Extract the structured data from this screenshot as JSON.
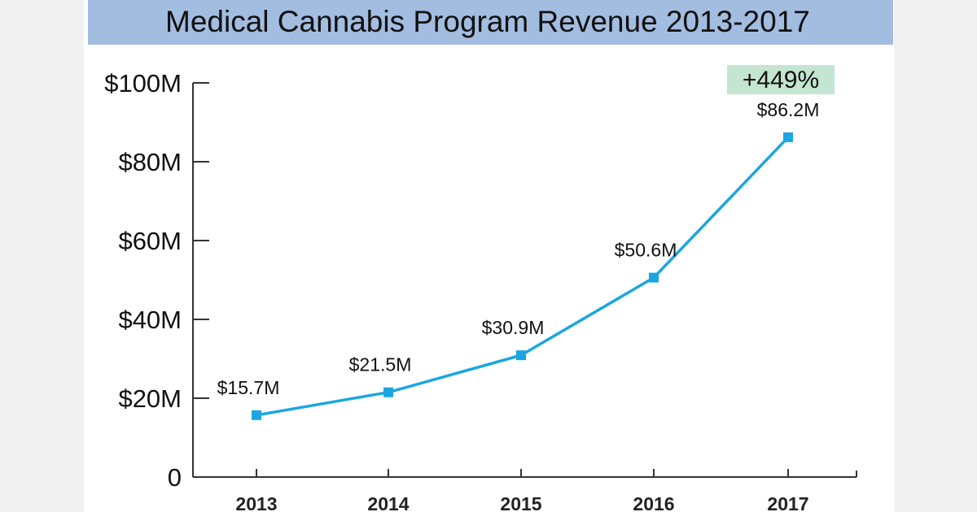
{
  "chart_data": {
    "type": "line",
    "title": "Medical Cannabis Program Revenue 2013-2017",
    "categories": [
      "2013",
      "2014",
      "2015",
      "2016",
      "2017"
    ],
    "values": [
      15.7,
      21.5,
      30.9,
      50.6,
      86.2
    ],
    "data_labels": [
      "$15.7M",
      "$21.5M",
      "$30.9M",
      "$50.6M",
      "$86.2M"
    ],
    "y_ticks": [
      0,
      20,
      40,
      60,
      80,
      100
    ],
    "y_tick_labels": [
      "0",
      "$20M",
      "$40M",
      "$60M",
      "$80M",
      "$100M"
    ],
    "ylim": [
      0,
      100
    ],
    "xlabel": "",
    "ylabel": "",
    "grid": false,
    "annotation": {
      "text": "+449%",
      "color": "#c3e5d2"
    },
    "line_color": "#1ba6e1",
    "title_bar_color": "#a2bde0"
  }
}
